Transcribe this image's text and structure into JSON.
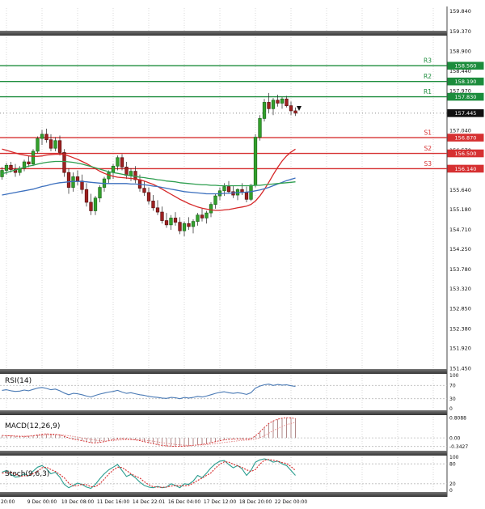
{
  "colors": {
    "up_candle": "#33a02c",
    "up_border": "#1a6b1a",
    "down_candle": "#9e2121",
    "down_border": "#5c1010",
    "wick": "#222222",
    "resistance": "#1c8c3c",
    "support": "#d63031",
    "current_price_bg": "#111111",
    "ma_fast": "#d62728",
    "ma_mid": "#3b6fbe",
    "ma_slow": "#2e9e4f",
    "rsi_line": "#4a7ab5",
    "macd_line": "#d62728",
    "macd_signal": "#e08080",
    "macd_hist": "#b08a8a",
    "stoch_k": "#2a9d8f",
    "stoch_d": "#d62728",
    "grid": "#d8d8d8",
    "guide": "#bbbbbb",
    "separator": "#4a4a4a",
    "axis_text": "#111111"
  },
  "chart_data": [
    {
      "type": "candlestick",
      "title": "",
      "x_ticks": [
        "20:00",
        "9 Dec 00:00",
        "10 Dec 08:00",
        "11 Dec 16:00",
        "14 Dec 22:01",
        "16 Dec 04:00",
        "17 Dec 12:00",
        "18 Dec 20:00",
        "22 Dec 00:00"
      ],
      "y_axis_labels": [
        "159.840",
        "159.370",
        "158.900",
        "158.440",
        "157.970",
        "157.040",
        "156.570",
        "156.100",
        "155.640",
        "155.180",
        "154.710",
        "154.250",
        "153.780",
        "153.320",
        "152.850",
        "152.380",
        "151.920",
        "151.450"
      ],
      "ylim": [
        151.45,
        159.915
      ],
      "levels": {
        "resistance": [
          {
            "name": "R3",
            "value": 158.56,
            "label": "158.560"
          },
          {
            "name": "R2",
            "value": 158.19,
            "label": "158.190"
          },
          {
            "name": "R1",
            "value": 157.83,
            "label": "157.830"
          }
        ],
        "support": [
          {
            "name": "S1",
            "value": 156.87,
            "label": "156.870"
          },
          {
            "name": "S2",
            "value": 156.5,
            "label": "156.500"
          },
          {
            "name": "S3",
            "value": 156.14,
            "label": "156.140"
          }
        ],
        "current_price": {
          "value": 157.445,
          "label": "157.445"
        }
      },
      "candles": [
        [
          155.95,
          156.18,
          155.88,
          156.1
        ],
        [
          156.1,
          156.28,
          156.0,
          156.22
        ],
        [
          156.22,
          156.3,
          156.05,
          156.12
        ],
        [
          156.12,
          156.25,
          155.95,
          156.05
        ],
        [
          156.05,
          156.2,
          155.98,
          156.15
        ],
        [
          156.15,
          156.35,
          156.08,
          156.3
        ],
        [
          156.3,
          156.45,
          156.18,
          156.25
        ],
        [
          156.25,
          156.6,
          156.2,
          156.55
        ],
        [
          156.55,
          156.9,
          156.5,
          156.85
        ],
        [
          156.85,
          157.05,
          156.7,
          156.95
        ],
        [
          156.95,
          157.08,
          156.75,
          156.82
        ],
        [
          156.82,
          156.95,
          156.55,
          156.62
        ],
        [
          156.62,
          156.88,
          156.55,
          156.8
        ],
        [
          156.8,
          156.92,
          156.45,
          156.52
        ],
        [
          156.52,
          156.6,
          155.95,
          156.05
        ],
        [
          156.05,
          156.15,
          155.55,
          155.7
        ],
        [
          155.7,
          156.05,
          155.6,
          155.95
        ],
        [
          155.95,
          156.1,
          155.75,
          155.85
        ],
        [
          155.85,
          156.0,
          155.55,
          155.65
        ],
        [
          155.65,
          155.8,
          155.25,
          155.35
        ],
        [
          155.35,
          155.55,
          155.05,
          155.15
        ],
        [
          155.15,
          155.5,
          155.05,
          155.45
        ],
        [
          155.45,
          155.75,
          155.35,
          155.7
        ],
        [
          155.7,
          155.95,
          155.6,
          155.9
        ],
        [
          155.9,
          156.1,
          155.8,
          156.05
        ],
        [
          156.05,
          156.25,
          155.9,
          156.2
        ],
        [
          156.2,
          156.45,
          156.1,
          156.4
        ],
        [
          156.4,
          156.48,
          156.1,
          156.18
        ],
        [
          156.18,
          156.3,
          155.9,
          155.98
        ],
        [
          155.98,
          156.15,
          155.85,
          156.08
        ],
        [
          156.08,
          156.2,
          155.8,
          155.88
        ],
        [
          155.88,
          156.0,
          155.6,
          155.68
        ],
        [
          155.68,
          155.85,
          155.5,
          155.58
        ],
        [
          155.58,
          155.7,
          155.3,
          155.38
        ],
        [
          155.38,
          155.52,
          155.15,
          155.22
        ],
        [
          155.22,
          155.4,
          155.05,
          155.12
        ],
        [
          155.12,
          155.25,
          154.85,
          154.92
        ],
        [
          154.92,
          155.1,
          154.75,
          154.82
        ],
        [
          154.82,
          155.05,
          154.7,
          154.98
        ],
        [
          154.98,
          155.12,
          154.8,
          154.88
        ],
        [
          154.88,
          155.0,
          154.6,
          154.68
        ],
        [
          154.68,
          154.9,
          154.55,
          154.85
        ],
        [
          154.85,
          155.0,
          154.7,
          154.78
        ],
        [
          154.78,
          154.95,
          154.62,
          154.9
        ],
        [
          154.9,
          155.1,
          154.8,
          155.05
        ],
        [
          155.05,
          155.2,
          154.9,
          154.98
        ],
        [
          154.98,
          155.15,
          154.85,
          155.1
        ],
        [
          155.1,
          155.35,
          155.0,
          155.3
        ],
        [
          155.3,
          155.55,
          155.2,
          155.5
        ],
        [
          155.5,
          155.7,
          155.4,
          155.62
        ],
        [
          155.62,
          155.8,
          155.5,
          155.72
        ],
        [
          155.72,
          155.85,
          155.55,
          155.6
        ],
        [
          155.6,
          155.75,
          155.45,
          155.52
        ],
        [
          155.52,
          155.68,
          155.4,
          155.65
        ],
        [
          155.65,
          155.8,
          155.52,
          155.58
        ],
        [
          155.58,
          155.72,
          155.35,
          155.42
        ],
        [
          155.42,
          155.78,
          155.38,
          155.75
        ],
        [
          155.75,
          156.95,
          155.7,
          156.88
        ],
        [
          156.88,
          157.4,
          156.8,
          157.32
        ],
        [
          157.32,
          157.78,
          157.25,
          157.7
        ],
        [
          157.7,
          157.92,
          157.45,
          157.55
        ],
        [
          157.55,
          157.8,
          157.4,
          157.75
        ],
        [
          157.75,
          157.88,
          157.6,
          157.68
        ],
        [
          157.68,
          157.82,
          157.55,
          157.78
        ],
        [
          157.78,
          157.85,
          157.58,
          157.62
        ],
        [
          157.62,
          157.72,
          157.4,
          157.5
        ],
        [
          157.5,
          157.58,
          157.38,
          157.445
        ]
      ],
      "overlays": [
        {
          "name": "ma-fast",
          "color": "#d62728",
          "values": [
            156.6,
            156.57,
            156.54,
            156.51,
            156.48,
            156.46,
            156.44,
            156.43,
            156.43,
            156.44,
            156.46,
            156.47,
            156.48,
            156.48,
            156.47,
            156.44,
            156.4,
            156.36,
            156.31,
            156.26,
            156.2,
            156.14,
            156.08,
            156.03,
            155.99,
            155.96,
            155.94,
            155.93,
            155.92,
            155.91,
            155.9,
            155.88,
            155.85,
            155.81,
            155.77,
            155.72,
            155.66,
            155.6,
            155.54,
            155.48,
            155.42,
            155.37,
            155.32,
            155.28,
            155.24,
            155.21,
            155.19,
            155.17,
            155.16,
            155.16,
            155.17,
            155.18,
            155.2,
            155.22,
            155.24,
            155.26,
            155.3,
            155.38,
            155.5,
            155.65,
            155.82,
            156.0,
            156.17,
            156.32,
            156.44,
            156.53,
            156.6
          ]
        },
        {
          "name": "ma-mid",
          "color": "#3b6fbe",
          "values": [
            155.52,
            155.54,
            155.56,
            155.58,
            155.6,
            155.62,
            155.64,
            155.66,
            155.69,
            155.72,
            155.74,
            155.77,
            155.79,
            155.81,
            155.82,
            155.83,
            155.84,
            155.84,
            155.84,
            155.83,
            155.82,
            155.81,
            155.8,
            155.79,
            155.79,
            155.79,
            155.79,
            155.79,
            155.79,
            155.78,
            155.78,
            155.77,
            155.76,
            155.75,
            155.73,
            155.72,
            155.7,
            155.68,
            155.66,
            155.64,
            155.62,
            155.6,
            155.59,
            155.58,
            155.57,
            155.56,
            155.55,
            155.55,
            155.55,
            155.55,
            155.56,
            155.56,
            155.57,
            155.58,
            155.58,
            155.59,
            155.6,
            155.62,
            155.64,
            155.67,
            155.7,
            155.74,
            155.78,
            155.82,
            155.86,
            155.89,
            155.92
          ]
        },
        {
          "name": "ma-slow",
          "color": "#2e9e4f",
          "values": [
            156.02,
            156.05,
            156.08,
            156.11,
            156.14,
            156.17,
            156.2,
            156.22,
            156.25,
            156.27,
            156.29,
            156.3,
            156.31,
            156.31,
            156.31,
            156.3,
            156.29,
            156.27,
            156.25,
            156.22,
            156.19,
            156.16,
            156.13,
            156.1,
            156.07,
            156.05,
            156.03,
            156.01,
            155.99,
            155.97,
            155.96,
            155.94,
            155.93,
            155.91,
            155.9,
            155.88,
            155.87,
            155.85,
            155.84,
            155.83,
            155.81,
            155.8,
            155.79,
            155.78,
            155.77,
            155.76,
            155.76,
            155.75,
            155.75,
            155.74,
            155.74,
            155.74,
            155.74,
            155.74,
            155.74,
            155.74,
            155.74,
            155.75,
            155.75,
            155.76,
            155.77,
            155.78,
            155.79,
            155.8,
            155.81,
            155.82,
            155.83
          ]
        }
      ]
    },
    {
      "type": "line",
      "title": "RSI(14)",
      "ylim": [
        0,
        100
      ],
      "y_ticks": [
        "100",
        "70",
        "30",
        "0"
      ],
      "guides": [
        70,
        30
      ],
      "series": [
        {
          "name": "rsi",
          "color": "#4a7ab5",
          "values": [
            55,
            57,
            54,
            52,
            53,
            56,
            54,
            58,
            62,
            64,
            61,
            57,
            59,
            54,
            47,
            42,
            46,
            45,
            42,
            38,
            35,
            40,
            44,
            47,
            50,
            52,
            55,
            50,
            46,
            48,
            45,
            42,
            40,
            37,
            35,
            34,
            32,
            31,
            34,
            33,
            30,
            34,
            32,
            34,
            37,
            35,
            38,
            42,
            46,
            49,
            51,
            48,
            46,
            48,
            46,
            43,
            48,
            62,
            68,
            72,
            74,
            70,
            73,
            71,
            72,
            69,
            67
          ]
        }
      ]
    },
    {
      "type": "macd",
      "title": "MACD(12,26,9)",
      "ylim": [
        -0.45,
        0.85
      ],
      "y_ticks": [
        {
          "label": "0.8088",
          "value": 0.8088
        },
        {
          "label": "0.00",
          "value": 0
        },
        {
          "label": "-0.3427",
          "value": -0.3427
        }
      ],
      "guides": [
        0,
        -0.3427
      ],
      "macd": [
        0.1,
        0.09,
        0.08,
        0.07,
        0.06,
        0.06,
        0.07,
        0.09,
        0.12,
        0.15,
        0.16,
        0.15,
        0.14,
        0.12,
        0.07,
        0.0,
        -0.05,
        -0.08,
        -0.11,
        -0.15,
        -0.19,
        -0.2,
        -0.18,
        -0.15,
        -0.11,
        -0.07,
        -0.04,
        -0.03,
        -0.04,
        -0.06,
        -0.08,
        -0.11,
        -0.15,
        -0.19,
        -0.23,
        -0.27,
        -0.3,
        -0.32,
        -0.33,
        -0.34,
        -0.34,
        -0.33,
        -0.32,
        -0.3,
        -0.28,
        -0.26,
        -0.23,
        -0.19,
        -0.15,
        -0.11,
        -0.08,
        -0.06,
        -0.05,
        -0.04,
        -0.04,
        -0.05,
        -0.03,
        0.08,
        0.24,
        0.42,
        0.58,
        0.68,
        0.75,
        0.79,
        0.81,
        0.8,
        0.78
      ],
      "signal": [
        0.09,
        0.09,
        0.09,
        0.08,
        0.08,
        0.07,
        0.07,
        0.08,
        0.09,
        0.1,
        0.11,
        0.12,
        0.12,
        0.12,
        0.11,
        0.09,
        0.06,
        0.03,
        0.0,
        -0.03,
        -0.06,
        -0.09,
        -0.11,
        -0.12,
        -0.12,
        -0.11,
        -0.09,
        -0.08,
        -0.07,
        -0.07,
        -0.07,
        -0.08,
        -0.09,
        -0.11,
        -0.13,
        -0.16,
        -0.19,
        -0.22,
        -0.24,
        -0.26,
        -0.28,
        -0.29,
        -0.3,
        -0.3,
        -0.29,
        -0.28,
        -0.27,
        -0.25,
        -0.23,
        -0.21,
        -0.18,
        -0.16,
        -0.14,
        -0.12,
        -0.1,
        -0.09,
        -0.08,
        -0.05,
        0.01,
        0.09,
        0.19,
        0.29,
        0.38,
        0.46,
        0.53,
        0.58,
        0.62
      ]
    },
    {
      "type": "line",
      "title": "Stoch(9,6,3)",
      "ylim": [
        0,
        100
      ],
      "y_ticks": [
        "100",
        "80",
        "20",
        "0"
      ],
      "guides": [
        80,
        20
      ],
      "series": [
        {
          "name": "stoch-k",
          "color": "#2a9d8f",
          "dashed": false,
          "values": [
            55,
            60,
            48,
            40,
            42,
            50,
            44,
            58,
            70,
            75,
            65,
            50,
            55,
            40,
            18,
            8,
            15,
            22,
            18,
            10,
            6,
            18,
            35,
            50,
            62,
            70,
            78,
            60,
            42,
            48,
            38,
            25,
            15,
            10,
            8,
            12,
            8,
            10,
            20,
            15,
            8,
            20,
            18,
            28,
            45,
            38,
            52,
            68,
            80,
            88,
            90,
            78,
            68,
            75,
            65,
            45,
            60,
            85,
            92,
            95,
            92,
            85,
            88,
            80,
            75,
            60,
            45
          ]
        },
        {
          "name": "stoch-d",
          "color": "#d62728",
          "dashed": true,
          "values": [
            52,
            54,
            54,
            49,
            43,
            44,
            45,
            51,
            57,
            68,
            70,
            63,
            57,
            48,
            38,
            22,
            13,
            15,
            18,
            17,
            11,
            11,
            20,
            34,
            49,
            61,
            70,
            69,
            60,
            50,
            43,
            37,
            26,
            17,
            11,
            10,
            9,
            10,
            13,
            15,
            14,
            14,
            15,
            22,
            30,
            37,
            45,
            53,
            67,
            79,
            86,
            85,
            79,
            74,
            69,
            62,
            57,
            63,
            79,
            91,
            93,
            91,
            88,
            84,
            81,
            72,
            60
          ]
        }
      ]
    }
  ]
}
